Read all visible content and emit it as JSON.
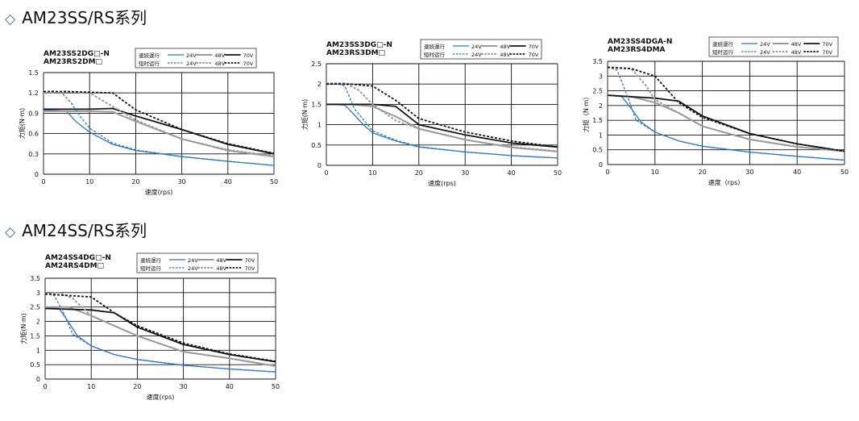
{
  "sections": [
    {
      "marker": "◇",
      "title": "AM23SS/RS系列"
    },
    {
      "marker": "◇",
      "title": "AM24SS/RS系列"
    }
  ],
  "legend_rows": [
    "連続運行",
    "短时运行"
  ],
  "colors": {
    "24V": "#2f78c4",
    "48V": "#9a9a9a",
    "70V": "#151515",
    "grid": "#111111"
  },
  "chart_data": [
    {
      "type": "line",
      "model_lines": [
        "AM23SS2DG□-N",
        "AM23RS2DM□"
      ],
      "xlabel": "速度(rps)",
      "ylabel": "力矩(N·m)",
      "xlim": [
        0,
        50
      ],
      "ylim": [
        0,
        1.5
      ],
      "xticks": [
        "0",
        "10",
        "20",
        "30",
        "40",
        "50"
      ],
      "yticks": [
        "0",
        "0.3",
        "0.6",
        "0.9",
        "1.2",
        "1.5"
      ],
      "series": [
        {
          "name": "24V",
          "mode": "連続運行",
          "x": [
            0,
            5,
            7,
            10,
            15,
            20,
            30,
            40,
            50
          ],
          "y": [
            0.95,
            0.93,
            0.78,
            0.62,
            0.44,
            0.35,
            0.26,
            0.19,
            0.13
          ]
        },
        {
          "name": "48V",
          "mode": "連続運行",
          "x": [
            0,
            10,
            15,
            20,
            30,
            40,
            50
          ],
          "y": [
            0.93,
            0.93,
            0.92,
            0.78,
            0.52,
            0.35,
            0.26
          ]
        },
        {
          "name": "70V",
          "mode": "連続運行",
          "x": [
            0,
            10,
            15,
            20,
            30,
            40,
            50
          ],
          "y": [
            0.96,
            0.96,
            0.97,
            0.86,
            0.66,
            0.44,
            0.3
          ]
        },
        {
          "name": "24V",
          "mode": "短时运行",
          "x": [
            0,
            2,
            4,
            6,
            8,
            10,
            15,
            20,
            30,
            40,
            50
          ],
          "y": [
            1.21,
            1.23,
            1.2,
            1.05,
            0.85,
            0.68,
            0.46,
            0.36,
            0.26,
            0.19,
            0.13
          ]
        },
        {
          "name": "48V",
          "mode": "短时运行",
          "x": [
            0,
            5,
            10,
            15,
            20,
            30,
            40,
            50
          ],
          "y": [
            1.2,
            1.22,
            1.2,
            1.0,
            0.8,
            0.52,
            0.36,
            0.27
          ]
        },
        {
          "name": "70V",
          "mode": "短时运行",
          "x": [
            0,
            5,
            10,
            15,
            20,
            30,
            40,
            50
          ],
          "y": [
            1.22,
            1.22,
            1.21,
            1.2,
            0.95,
            0.66,
            0.45,
            0.31
          ]
        }
      ]
    },
    {
      "type": "line",
      "model_lines": [
        "AM23SS3DG□-N",
        "AM23RS3DM□"
      ],
      "xlabel": "速度(rps)",
      "ylabel": "力矩(N·m)",
      "xlim": [
        0,
        50
      ],
      "ylim": [
        0,
        2.5
      ],
      "xticks": [
        "0",
        "10",
        "20",
        "30",
        "40",
        "50"
      ],
      "yticks": [
        "0",
        "0.5",
        "1",
        "1.5",
        "2",
        "2.5"
      ],
      "series": [
        {
          "name": "24V",
          "mode": "連続運行",
          "x": [
            0,
            4,
            6,
            8,
            10,
            15,
            20,
            30,
            40,
            50
          ],
          "y": [
            1.5,
            1.48,
            1.25,
            1.0,
            0.8,
            0.6,
            0.45,
            0.33,
            0.24,
            0.18
          ]
        },
        {
          "name": "48V",
          "mode": "連続運行",
          "x": [
            0,
            5,
            10,
            15,
            20,
            30,
            40,
            50
          ],
          "y": [
            1.5,
            1.5,
            1.45,
            1.2,
            0.9,
            0.63,
            0.44,
            0.34
          ]
        },
        {
          "name": "70V",
          "mode": "連続運行",
          "x": [
            0,
            10,
            15,
            20,
            30,
            40,
            50
          ],
          "y": [
            1.5,
            1.5,
            1.45,
            1.0,
            0.75,
            0.55,
            0.45
          ]
        },
        {
          "name": "24V",
          "mode": "短时运行",
          "x": [
            0,
            2,
            4,
            6,
            10,
            15,
            20,
            30,
            40,
            50
          ],
          "y": [
            2.0,
            2.02,
            1.95,
            1.4,
            0.85,
            0.62,
            0.46,
            0.33,
            0.24,
            0.18
          ]
        },
        {
          "name": "48V",
          "mode": "短时运行",
          "x": [
            0,
            4,
            7,
            10,
            15,
            20,
            30,
            40,
            50
          ],
          "y": [
            2.02,
            2.02,
            1.85,
            1.5,
            1.1,
            0.9,
            0.63,
            0.45,
            0.35
          ]
        },
        {
          "name": "70V",
          "mode": "短时运行",
          "x": [
            0,
            5,
            10,
            15,
            20,
            30,
            40,
            50
          ],
          "y": [
            2.0,
            2.0,
            1.95,
            1.6,
            1.15,
            0.82,
            0.6,
            0.45
          ]
        }
      ]
    },
    {
      "type": "line",
      "model_lines": [
        "AM23SS4DGA-N",
        "AM23RS4DMA"
      ],
      "xlabel": "速度（rps）",
      "ylabel": "力矩（N·m）",
      "xlim": [
        0,
        50
      ],
      "ylim": [
        0,
        3.5
      ],
      "xticks": [
        "0",
        "10",
        "20",
        "30",
        "40",
        "50"
      ],
      "yticks": [
        "0",
        "0.5",
        "1",
        "1.5",
        "2",
        "2.5",
        "3",
        "3.5"
      ],
      "series": [
        {
          "name": "24V",
          "mode": "連続運行",
          "x": [
            0,
            3,
            5,
            7,
            10,
            15,
            20,
            30,
            40,
            50
          ],
          "y": [
            2.35,
            2.3,
            1.9,
            1.45,
            1.1,
            0.8,
            0.62,
            0.42,
            0.28,
            0.15
          ]
        },
        {
          "name": "48V",
          "mode": "連続運行",
          "x": [
            0,
            5,
            10,
            15,
            20,
            30,
            40,
            50
          ],
          "y": [
            2.35,
            2.3,
            2.1,
            1.75,
            1.3,
            0.85,
            0.6,
            0.45
          ]
        },
        {
          "name": "70V",
          "mode": "連続運行",
          "x": [
            0,
            10,
            15,
            20,
            30,
            40,
            50
          ],
          "y": [
            2.35,
            2.25,
            2.15,
            1.65,
            1.05,
            0.7,
            0.45
          ]
        },
        {
          "name": "24V",
          "mode": "短时运行",
          "x": [
            0,
            2,
            4,
            6,
            10,
            15,
            20,
            30,
            40,
            50
          ],
          "y": [
            3.3,
            3.2,
            2.4,
            1.5,
            1.1,
            0.8,
            0.62,
            0.42,
            0.28,
            0.15
          ]
        },
        {
          "name": "48V",
          "mode": "短时运行",
          "x": [
            0,
            5,
            8,
            10,
            15,
            20,
            30,
            40,
            50
          ],
          "y": [
            3.28,
            3.25,
            2.7,
            2.2,
            1.75,
            1.3,
            0.85,
            0.6,
            0.45
          ]
        },
        {
          "name": "70V",
          "mode": "短时运行",
          "x": [
            0,
            5,
            8,
            10,
            15,
            20,
            30,
            40,
            50
          ],
          "y": [
            3.3,
            3.25,
            3.1,
            3.0,
            2.1,
            1.6,
            1.05,
            0.7,
            0.45
          ]
        }
      ]
    },
    {
      "type": "line",
      "model_lines": [
        "AM24SS4DG□-N",
        "AM24RS4DM□"
      ],
      "xlabel": "速度(rps)",
      "ylabel": "力矩(N·m)",
      "xlim": [
        0,
        50
      ],
      "ylim": [
        0,
        3.5
      ],
      "xticks": [
        "0",
        "10",
        "20",
        "30",
        "40",
        "50"
      ],
      "yticks": [
        "0",
        "0.5",
        "1",
        "1.5",
        "2",
        "2.5",
        "3",
        "3.5"
      ],
      "series": [
        {
          "name": "24V",
          "mode": "連続運行",
          "x": [
            0,
            3,
            5,
            7,
            10,
            15,
            20,
            30,
            40,
            50
          ],
          "y": [
            2.5,
            2.45,
            2.0,
            1.5,
            1.15,
            0.85,
            0.68,
            0.48,
            0.35,
            0.25
          ]
        },
        {
          "name": "48V",
          "mode": "連続運行",
          "x": [
            0,
            5,
            10,
            15,
            20,
            30,
            40,
            50
          ],
          "y": [
            2.5,
            2.5,
            2.2,
            1.85,
            1.5,
            0.95,
            0.72,
            0.45
          ]
        },
        {
          "name": "70V",
          "mode": "連続運行",
          "x": [
            0,
            10,
            15,
            20,
            30,
            40,
            50
          ],
          "y": [
            2.45,
            2.4,
            2.3,
            1.8,
            1.2,
            0.85,
            0.6
          ]
        },
        {
          "name": "24V",
          "mode": "短时运行",
          "x": [
            0,
            2,
            4,
            6,
            10,
            15,
            20,
            30,
            40,
            50
          ],
          "y": [
            3.0,
            2.9,
            2.3,
            1.55,
            1.15,
            0.85,
            0.68,
            0.48,
            0.35,
            0.25
          ]
        },
        {
          "name": "48V",
          "mode": "短时运行",
          "x": [
            0,
            3,
            6,
            10,
            15,
            20,
            30,
            40,
            50
          ],
          "y": [
            2.95,
            3.0,
            2.8,
            2.2,
            1.85,
            1.5,
            0.95,
            0.72,
            0.45
          ]
        },
        {
          "name": "70V",
          "mode": "短时运行",
          "x": [
            0,
            5,
            10,
            15,
            20,
            30,
            40,
            50
          ],
          "y": [
            2.95,
            2.9,
            2.85,
            2.3,
            1.85,
            1.25,
            0.87,
            0.62
          ]
        }
      ]
    }
  ]
}
